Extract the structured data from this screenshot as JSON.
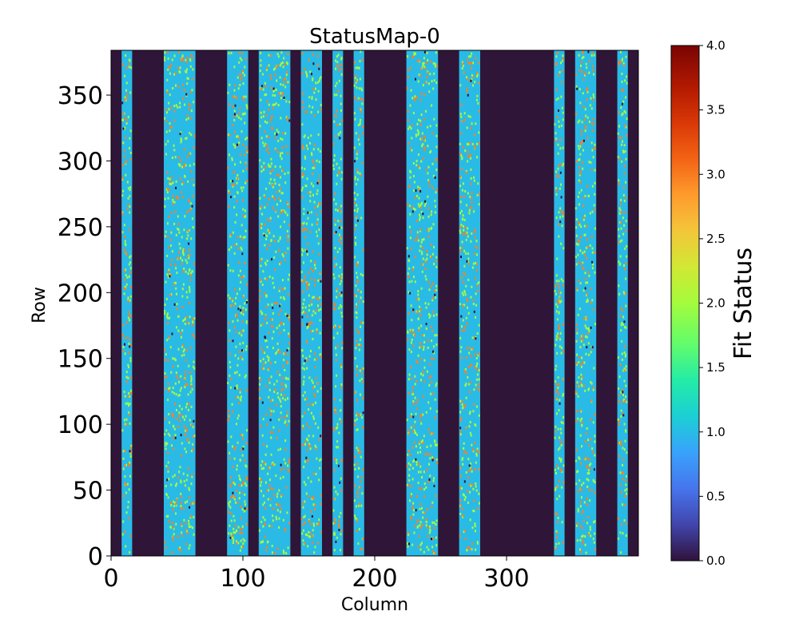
{
  "chart_data": {
    "type": "heatmap",
    "title": "StatusMap-0",
    "xlabel": "Column",
    "ylabel": "Row",
    "xlim": [
      0,
      400
    ],
    "ylim": [
      0,
      384
    ],
    "x_ticks": [
      "0",
      "100",
      "200",
      "300"
    ],
    "y_ticks": [
      "0",
      "50",
      "100",
      "150",
      "200",
      "250",
      "300",
      "350"
    ],
    "colorbar": {
      "label": "Fit Status",
      "range": [
        0.0,
        4.0
      ],
      "ticks": [
        "0.0",
        "0.5",
        "1.0",
        "1.5",
        "2.0",
        "2.5",
        "3.0",
        "3.5",
        "4.0"
      ],
      "colormap": "turbo"
    },
    "background_value": 0,
    "active_column_bands": [
      {
        "x0": 8,
        "x1": 16
      },
      {
        "x0": 40,
        "x1": 64
      },
      {
        "x0": 88,
        "x1": 104
      },
      {
        "x0": 112,
        "x1": 136
      },
      {
        "x0": 144,
        "x1": 160
      },
      {
        "x0": 168,
        "x1": 176
      },
      {
        "x0": 184,
        "x1": 192
      },
      {
        "x0": 224,
        "x1": 248
      },
      {
        "x0": 264,
        "x1": 280
      },
      {
        "x0": 336,
        "x1": 344
      },
      {
        "x0": 352,
        "x1": 368
      },
      {
        "x0": 384,
        "x1": 392
      }
    ],
    "band_dominant_value": 1,
    "band_scatter_values": [
      2,
      3,
      0
    ]
  },
  "colors": {
    "background": "#2f1537",
    "band": "#29bbe6",
    "status_2": "#a4fc3c",
    "status_3": "#fb8022",
    "status_0": "#30123b"
  }
}
